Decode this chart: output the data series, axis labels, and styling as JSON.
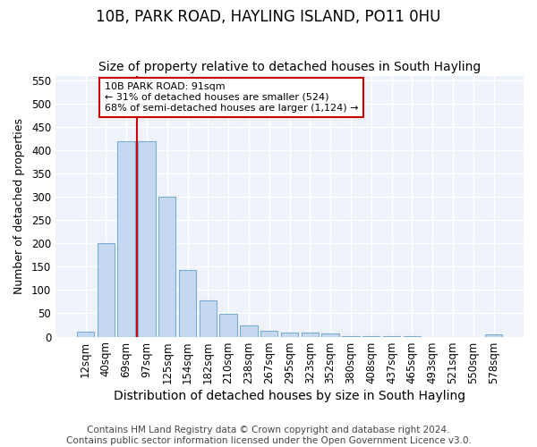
{
  "title": "10B, PARK ROAD, HAYLING ISLAND, PO11 0HU",
  "subtitle": "Size of property relative to detached houses in South Hayling",
  "xlabel": "Distribution of detached houses by size in South Hayling",
  "ylabel": "Number of detached properties",
  "footnote1": "Contains HM Land Registry data © Crown copyright and database right 2024.",
  "footnote2": "Contains public sector information licensed under the Open Government Licence v3.0.",
  "bar_labels": [
    "12sqm",
    "40sqm",
    "69sqm",
    "97sqm",
    "125sqm",
    "154sqm",
    "182sqm",
    "210sqm",
    "238sqm",
    "267sqm",
    "295sqm",
    "323sqm",
    "352sqm",
    "380sqm",
    "408sqm",
    "437sqm",
    "465sqm",
    "493sqm",
    "521sqm",
    "550sqm",
    "578sqm"
  ],
  "bar_values": [
    10,
    200,
    420,
    420,
    300,
    143,
    78,
    49,
    25,
    13,
    9,
    8,
    6,
    2,
    1,
    1,
    1,
    0,
    0,
    0,
    4
  ],
  "bar_color": "#c5d8f0",
  "bar_edgecolor": "#7aadd4",
  "property_line_index": 3,
  "property_line_color": "#cc0000",
  "annotation_line1": "10B PARK ROAD: 91sqm",
  "annotation_line2": "← 31% of detached houses are smaller (524)",
  "annotation_line3": "68% of semi-detached houses are larger (1,124) →",
  "annotation_box_color": "#cc0000",
  "ylim": [
    0,
    560
  ],
  "yticks": [
    0,
    50,
    100,
    150,
    200,
    250,
    300,
    350,
    400,
    450,
    500,
    550
  ],
  "plot_bg": "#eef2f9",
  "fig_bg": "#ffffff",
  "grid_color": "#ffffff",
  "title_fontsize": 12,
  "subtitle_fontsize": 10,
  "xlabel_fontsize": 10,
  "ylabel_fontsize": 9,
  "tick_fontsize": 8.5,
  "footnote_fontsize": 7.5
}
